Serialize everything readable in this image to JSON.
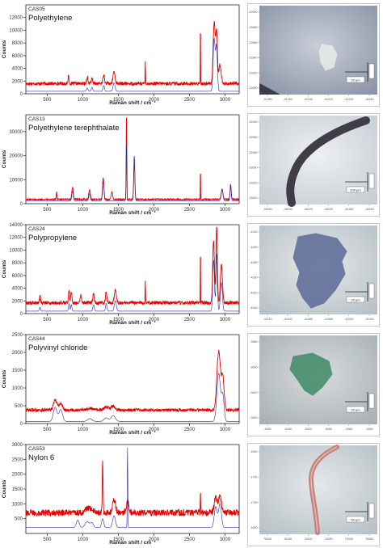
{
  "colors": {
    "measured": "#e60000",
    "reference": "#2a2aa8",
    "axis": "#222222"
  },
  "panels": [
    {
      "code": "CAS05",
      "name": "Polyethylene",
      "chart_data": {
        "type": "line",
        "xlabel": "Raman shift / cm⁻¹",
        "ylabel": "Counts",
        "xlim": [
          200,
          3200
        ],
        "ylim": [
          0,
          14000
        ],
        "xticks": [
          500,
          1000,
          1500,
          2000,
          2500,
          3000
        ],
        "yticks": [
          0,
          2000,
          4000,
          6000,
          8000,
          10000,
          12000
        ],
        "baseline_measured": 1600,
        "noise": 260,
        "peaks_measured": [
          [
            800,
            1400,
            6
          ],
          [
            1063,
            1000,
            10
          ],
          [
            1130,
            800,
            10
          ],
          [
            1295,
            1400,
            10
          ],
          [
            1440,
            1900,
            14
          ],
          [
            1880,
            3500,
            3
          ],
          [
            2655,
            11000,
            2
          ],
          [
            2848,
            9500,
            14
          ],
          [
            2882,
            8000,
            12
          ],
          [
            2930,
            3000,
            16
          ]
        ],
        "baseline_reference": 400,
        "peaks_reference": [
          [
            1063,
            500,
            10
          ],
          [
            1130,
            600,
            10
          ],
          [
            1295,
            900,
            10
          ],
          [
            1440,
            1300,
            14
          ],
          [
            2848,
            8200,
            14
          ],
          [
            2882,
            7000,
            12
          ]
        ],
        "grid": false,
        "legend": "none"
      },
      "image": {
        "background": [
          "#c9ced8",
          "#8c94a6"
        ],
        "sample_color": "#e9ecea",
        "sample_kind": "flake",
        "dark_corner": true,
        "ytick_labels": [
          "-22900",
          "-22880",
          "-22860",
          "-22840",
          "-22820",
          "-22800"
        ],
        "xtick_labels": [
          "-41280",
          "-41260",
          "-41240",
          "-41220",
          "-41200",
          "-41180"
        ],
        "scale_label": "20 µm"
      }
    },
    {
      "code": "CAS13",
      "name": "Polyethylene terephthalate",
      "chart_data": {
        "type": "line",
        "xlabel": "Raman shift / cm⁻¹",
        "ylabel": "Counts",
        "xlim": [
          200,
          3200
        ],
        "ylim": [
          0,
          37000
        ],
        "xticks": [
          500,
          1000,
          1500,
          2000,
          2500,
          3000
        ],
        "yticks": [
          0,
          10000,
          20000,
          30000
        ],
        "baseline_measured": 1800,
        "noise": 300,
        "peaks_measured": [
          [
            632,
            3000,
            5
          ],
          [
            857,
            5000,
            10
          ],
          [
            1096,
            4000,
            10
          ],
          [
            1288,
            9000,
            10
          ],
          [
            1410,
            3000,
            10
          ],
          [
            1615,
            37000,
            4
          ],
          [
            1725,
            17000,
            8
          ],
          [
            2655,
            15000,
            2
          ],
          [
            2960,
            4000,
            12
          ],
          [
            3080,
            6000,
            8
          ]
        ],
        "baseline_reference": 1200,
        "peaks_reference": [
          [
            857,
            4000,
            10
          ],
          [
            1096,
            3000,
            10
          ],
          [
            1288,
            8000,
            10
          ],
          [
            1615,
            24000,
            5
          ],
          [
            1725,
            19000,
            8
          ],
          [
            2960,
            5000,
            12
          ],
          [
            3080,
            7000,
            8
          ]
        ],
        "grid": false,
        "legend": "none"
      },
      "image": {
        "background": [
          "#eef1f2",
          "#c6ccd4"
        ],
        "sample_color": "#403c48",
        "sample_kind": "fiber-arc",
        "dark_corner": false,
        "ytick_labels": [
          "-32940",
          "-32960",
          "-32980",
          "-33000",
          "-33020",
          "-33040"
        ],
        "xtick_labels": [
          "-46260",
          "-46240",
          "-46220",
          "-46200",
          "-46180",
          "-46160"
        ],
        "scale_label": "100 µm"
      }
    },
    {
      "code": "CAS24",
      "name": "Polypropylene",
      "chart_data": {
        "type": "line",
        "xlabel": "Raman shift / cm⁻¹",
        "ylabel": "Counts",
        "xlim": [
          200,
          3200
        ],
        "ylim": [
          0,
          14000
        ],
        "xticks": [
          500,
          1000,
          1500,
          2000,
          2500,
          3000
        ],
        "yticks": [
          0,
          2000,
          4000,
          6000,
          8000,
          10000,
          12000,
          14000
        ],
        "baseline_measured": 1700,
        "noise": 280,
        "peaks_measured": [
          [
            398,
            1200,
            8
          ],
          [
            808,
            2000,
            8
          ],
          [
            840,
            1800,
            8
          ],
          [
            973,
            1200,
            8
          ],
          [
            1152,
            1500,
            10
          ],
          [
            1330,
            1800,
            10
          ],
          [
            1458,
            2000,
            14
          ],
          [
            1880,
            3500,
            3
          ],
          [
            2655,
            10000,
            2
          ],
          [
            2840,
            10000,
            12
          ],
          [
            2884,
            12000,
            10
          ],
          [
            2950,
            6000,
            14
          ]
        ],
        "baseline_reference": 400,
        "peaks_reference": [
          [
            398,
            600,
            8
          ],
          [
            808,
            1200,
            8
          ],
          [
            840,
            1000,
            8
          ],
          [
            1152,
            1000,
            10
          ],
          [
            1330,
            1200,
            10
          ],
          [
            1458,
            1600,
            14
          ],
          [
            2840,
            8000,
            12
          ],
          [
            2884,
            9000,
            10
          ],
          [
            2950,
            4500,
            14
          ]
        ],
        "grid": false,
        "legend": "none"
      },
      "image": {
        "background": [
          "#e6eae8",
          "#b8c0c6"
        ],
        "sample_color": "#5b6a98",
        "sample_kind": "flake",
        "dark_corner": false,
        "ytick_labels": [
          "-4240",
          "-4260",
          "-4280",
          "-4300",
          "-4320",
          "-4340"
        ],
        "xtick_labels": [
          "-41120",
          "-41100",
          "-41080",
          "-41060",
          "-41040",
          "-41020"
        ],
        "scale_label": "20 µm"
      }
    },
    {
      "code": "CAS44",
      "name": "Polyvinyl chloride",
      "chart_data": {
        "type": "line",
        "xlabel": "Raman shift / cm⁻¹",
        "ylabel": "Counts",
        "xlim": [
          200,
          3200
        ],
        "ylim": [
          0,
          2500
        ],
        "xticks": [
          500,
          1000,
          1500,
          2000,
          2500,
          3000
        ],
        "yticks": [
          0,
          500,
          1000,
          1500,
          2000,
          2500
        ],
        "baseline_measured": 380,
        "noise": 45,
        "peaks_measured": [
          [
            612,
            280,
            25
          ],
          [
            690,
            180,
            25
          ],
          [
            1100,
            60,
            30
          ],
          [
            1330,
            90,
            30
          ],
          [
            1428,
            110,
            30
          ],
          [
            2912,
            1650,
            25
          ],
          [
            2970,
            900,
            18
          ]
        ],
        "baseline_reference": 60,
        "peaks_reference": [
          [
            612,
            400,
            25
          ],
          [
            690,
            330,
            25
          ],
          [
            1100,
            80,
            30
          ],
          [
            1330,
            100,
            30
          ],
          [
            1428,
            160,
            30
          ],
          [
            2912,
            1350,
            25
          ],
          [
            2970,
            700,
            18
          ]
        ],
        "grid": false,
        "legend": "none"
      },
      "image": {
        "background": [
          "#d8dcdc",
          "#a9b1b6"
        ],
        "sample_color": "#3f8a68",
        "sample_kind": "flake",
        "dark_corner": false,
        "ytick_labels": [
          "-3580",
          "-3600",
          "-3620",
          "-3640"
        ],
        "xtick_labels": [
          "-5460",
          "-5440",
          "-5420",
          "-5400",
          "-5380",
          "-5360"
        ],
        "scale_label": "20 µm"
      }
    },
    {
      "code": "CAS53",
      "name": "Nylon 6",
      "chart_data": {
        "type": "line",
        "xlabel": "Raman shift / cm⁻¹",
        "ylabel": "Counts",
        "xlim": [
          200,
          3200
        ],
        "ylim": [
          0,
          3000
        ],
        "xticks": [
          500,
          1000,
          1500,
          2000,
          2500,
          3000
        ],
        "yticks": [
          500,
          1000,
          1500,
          2000,
          2500,
          3000
        ],
        "baseline_measured": 700,
        "noise": 110,
        "peaks_measured": [
          [
            1065,
            150,
            30
          ],
          [
            1130,
            120,
            20
          ],
          [
            1280,
            1700,
            6
          ],
          [
            1440,
            450,
            20
          ],
          [
            1630,
            350,
            20
          ],
          [
            2655,
            800,
            3
          ],
          [
            2870,
            500,
            20
          ],
          [
            2930,
            600,
            20
          ]
        ],
        "baseline_reference": 200,
        "peaks_reference": [
          [
            930,
            250,
            20
          ],
          [
            1065,
            200,
            30
          ],
          [
            1130,
            150,
            20
          ],
          [
            1280,
            300,
            15
          ],
          [
            1440,
            400,
            20
          ],
          [
            1630,
            2700,
            4
          ],
          [
            2870,
            700,
            20
          ],
          [
            2930,
            800,
            20
          ]
        ],
        "grid": false,
        "legend": "none"
      },
      "image": {
        "background": [
          "#e4e8ea",
          "#b9c1c6"
        ],
        "sample_color": "#c07a72",
        "sample_kind": "fiber-curve",
        "dark_corner": false,
        "ytick_labels": [
          "-1650",
          "-1700",
          "-1750",
          "-1800"
        ],
        "xtick_labels": [
          "76100",
          "76150",
          "76200",
          "76250",
          "76300",
          "76350"
        ],
        "scale_label": "50 µm"
      }
    }
  ]
}
